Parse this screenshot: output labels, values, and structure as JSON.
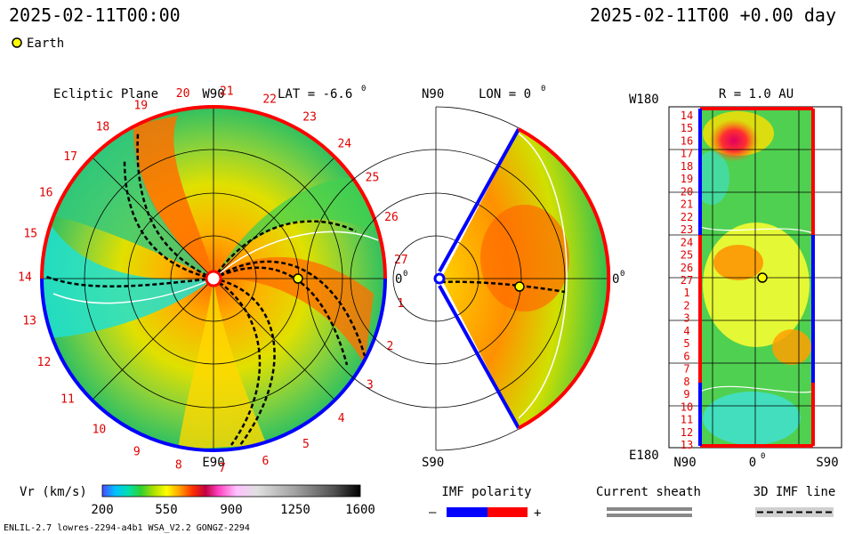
{
  "header": {
    "timestamp_left": "2025-02-11T00:00",
    "timestamp_right": "2025-02-11T00 +0.00 day",
    "legend_marker_label": "Earth"
  },
  "panels": {
    "ecliptic": {
      "title": "Ecliptic Plane",
      "lat_label": "LAT = -6.6",
      "lat_unit": "0",
      "label_w90": "W90",
      "label_e90": "E90",
      "label_zero": "0",
      "label_zero_sup": "0",
      "carrington_labels": [
        "1",
        "2",
        "3",
        "4",
        "5",
        "6",
        "7",
        "8",
        "9",
        "10",
        "11",
        "12",
        "13",
        "14",
        "15",
        "16",
        "17",
        "18",
        "19",
        "20",
        "21",
        "22",
        "23",
        "24",
        "25",
        "26",
        "27"
      ]
    },
    "meridional": {
      "label_n90": "N90",
      "lon_label": "LON = 0",
      "lon_unit": "0",
      "label_s90": "S90",
      "label_zero": "0",
      "label_zero_sup": "0"
    },
    "radial": {
      "title": "R = 1.0 AU",
      "label_w180": "W180",
      "label_e180": "E180",
      "label_n90": "N90",
      "label_s90": "S90",
      "label_zero": "0",
      "label_zero_sup": "0",
      "row_labels": [
        "14",
        "15",
        "16",
        "17",
        "18",
        "19",
        "20",
        "21",
        "22",
        "23",
        "24",
        "25",
        "26",
        "27",
        "1",
        "2",
        "3",
        "4",
        "5",
        "6",
        "7",
        "8",
        "9",
        "10",
        "11",
        "12",
        "13"
      ]
    }
  },
  "colorbar": {
    "label": "Vr (km/s)",
    "ticks": [
      "200",
      "550",
      "900",
      "1250",
      "1600"
    ]
  },
  "imf_legend": {
    "title": "IMF polarity",
    "minus": "–",
    "plus": "+"
  },
  "sheath_legend": {
    "title": "Current sheath"
  },
  "imfline_legend": {
    "title": "3D IMF line"
  },
  "footer": {
    "model_info": "ENLIL-2.7 lowres-2294-a4b1 WSA_V2.2 GONGZ-2294"
  },
  "colors": {
    "red_polarity": "#ff0000",
    "blue_polarity": "#0000ff",
    "earth_marker": "#ffff00",
    "label_red": "#e00000",
    "sheath_gray": "#888888"
  },
  "chart_data": {
    "type": "heatmap",
    "quantity": "Vr (km/s)",
    "colorbar_range": [
      200,
      1600
    ],
    "colorbar_ticks": [
      200,
      550,
      900,
      1250,
      1600
    ],
    "earth": {
      "lon_deg": 0,
      "lat_deg": -6.6,
      "r_au": 1.0
    },
    "ecliptic_lat_deg": -6.6,
    "meridional_lon_deg": 0,
    "radial_r_au": 1.0
  }
}
